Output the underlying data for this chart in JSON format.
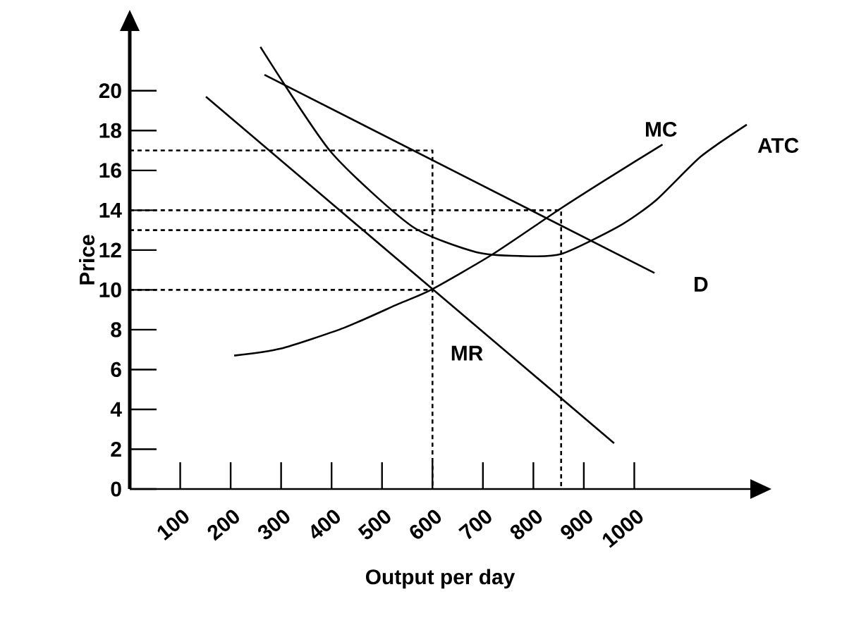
{
  "chart_data": {
    "type": "line",
    "xlabel": "Output per day",
    "ylabel": "Price",
    "xlim": [
      0,
      1230
    ],
    "ylim": [
      0,
      23
    ],
    "xticks": [
      100,
      200,
      300,
      400,
      500,
      600,
      700,
      800,
      900,
      1000
    ],
    "yticks": [
      0,
      2,
      4,
      6,
      8,
      10,
      12,
      14,
      16,
      18,
      20
    ],
    "marker": "none",
    "legend": false,
    "grid": false,
    "series": [
      {
        "name": "MC",
        "color": "#000000",
        "line_style": "solid",
        "x": [
          207,
          299,
          425,
          533,
          597,
          720,
          855,
          954,
          1056
        ],
        "values": [
          6.7,
          7.05,
          8.1,
          9.3,
          10.0,
          11.8,
          14.1,
          15.7,
          17.3
        ]
      },
      {
        "name": "ATC",
        "color": "#000000",
        "line_style": "solid",
        "x": [
          259,
          398,
          559,
          686,
          774,
          855,
          970,
          1043,
          1132,
          1223
        ],
        "values": [
          22.2,
          16.95,
          13.2,
          11.9,
          11.7,
          11.8,
          13.2,
          14.5,
          16.7,
          18.3
        ]
      },
      {
        "name": "D",
        "color": "#000000",
        "line_style": "solid",
        "x": [
          267,
          1040
        ],
        "values": [
          20.8,
          10.85
        ]
      },
      {
        "name": "MR",
        "color": "#000000",
        "line_style": "solid",
        "x": [
          151,
          960
        ],
        "values": [
          19.7,
          2.3
        ]
      },
      {
        "color": "#000000",
        "line_style": "dashed",
        "x": [
          0,
          600,
          600
        ],
        "values": [
          17,
          17,
          0
        ]
      },
      {
        "color": "#000000",
        "line_style": "dashed",
        "x": [
          0,
          855,
          855
        ],
        "values": [
          14,
          14,
          0
        ]
      },
      {
        "color": "#000000",
        "line_style": "dashed",
        "x": [
          0,
          600
        ],
        "values": [
          13,
          13
        ]
      },
      {
        "color": "#000000",
        "line_style": "dashed",
        "x": [
          0,
          600
        ],
        "values": [
          10,
          10
        ]
      }
    ]
  }
}
